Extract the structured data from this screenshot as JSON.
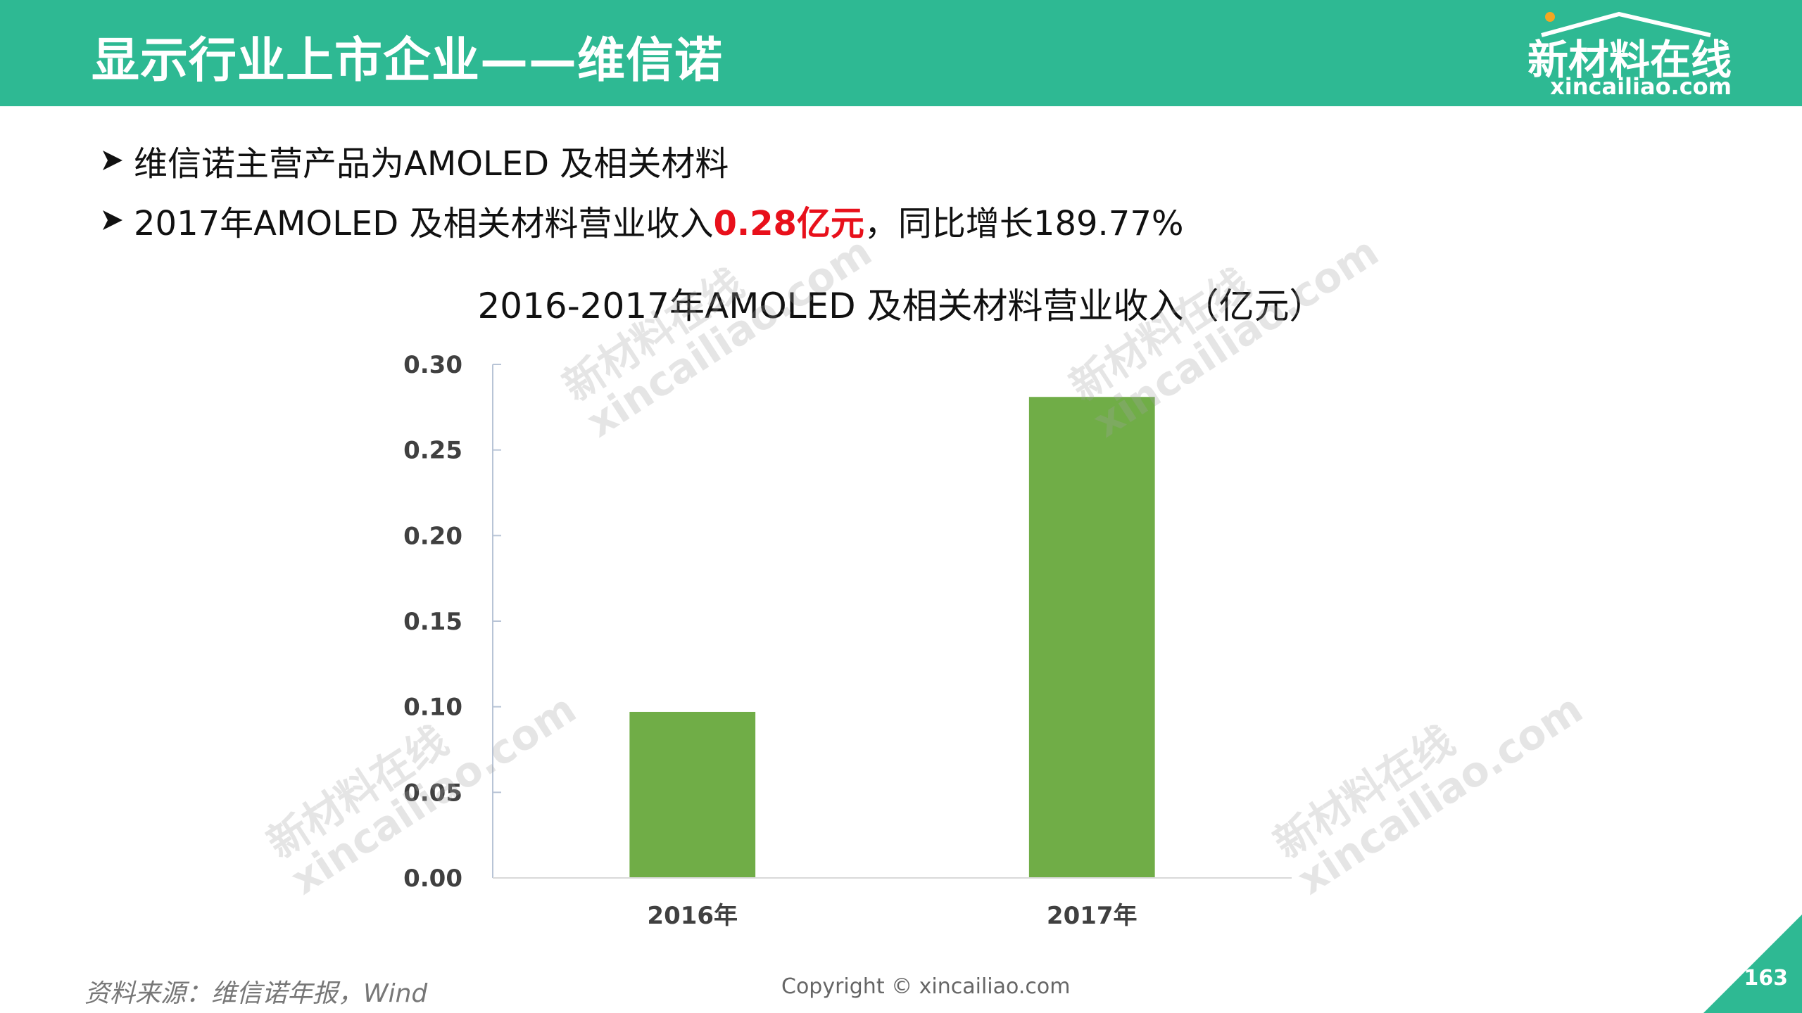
{
  "header": {
    "title": "显示行业上市企业——维信诺",
    "logo_name": "新材料在线",
    "logo_domain": "xincailiao.com"
  },
  "bullets": [
    {
      "text": "维信诺主营产品为AMOLED 及相关材料"
    },
    {
      "before": "2017年AMOLED 及相关材料营业收入",
      "highlight": "0.28亿元",
      "after": "，同比增长189.77%"
    }
  ],
  "colors": {
    "header_bg": "#2eb993",
    "bar": "#70ad47",
    "highlight": "#e8101b"
  },
  "chart_data": {
    "type": "bar",
    "title": "2016-2017年AMOLED 及相关材料营业收入（亿元）",
    "categories": [
      "2016年",
      "2017年"
    ],
    "values": [
      0.097,
      0.281
    ],
    "ylim": [
      0,
      0.3
    ],
    "yticks": [
      "0.00",
      "0.05",
      "0.10",
      "0.15",
      "0.20",
      "0.25",
      "0.30"
    ],
    "grid": false,
    "legend": "none"
  },
  "watermarks": [
    {
      "cn": "新材料在线",
      "en": "xincailiao.com"
    },
    {
      "cn": "新材料在线",
      "en": "xincailiao.com"
    },
    {
      "cn": "新材料在线",
      "en": "xincailiao.com"
    },
    {
      "cn": "新材料在线",
      "en": "xincailiao.com"
    }
  ],
  "footer": {
    "source": "资料来源：维信诺年报，Wind",
    "copyright": "Copyright © xincailiao.com",
    "page": "163"
  }
}
